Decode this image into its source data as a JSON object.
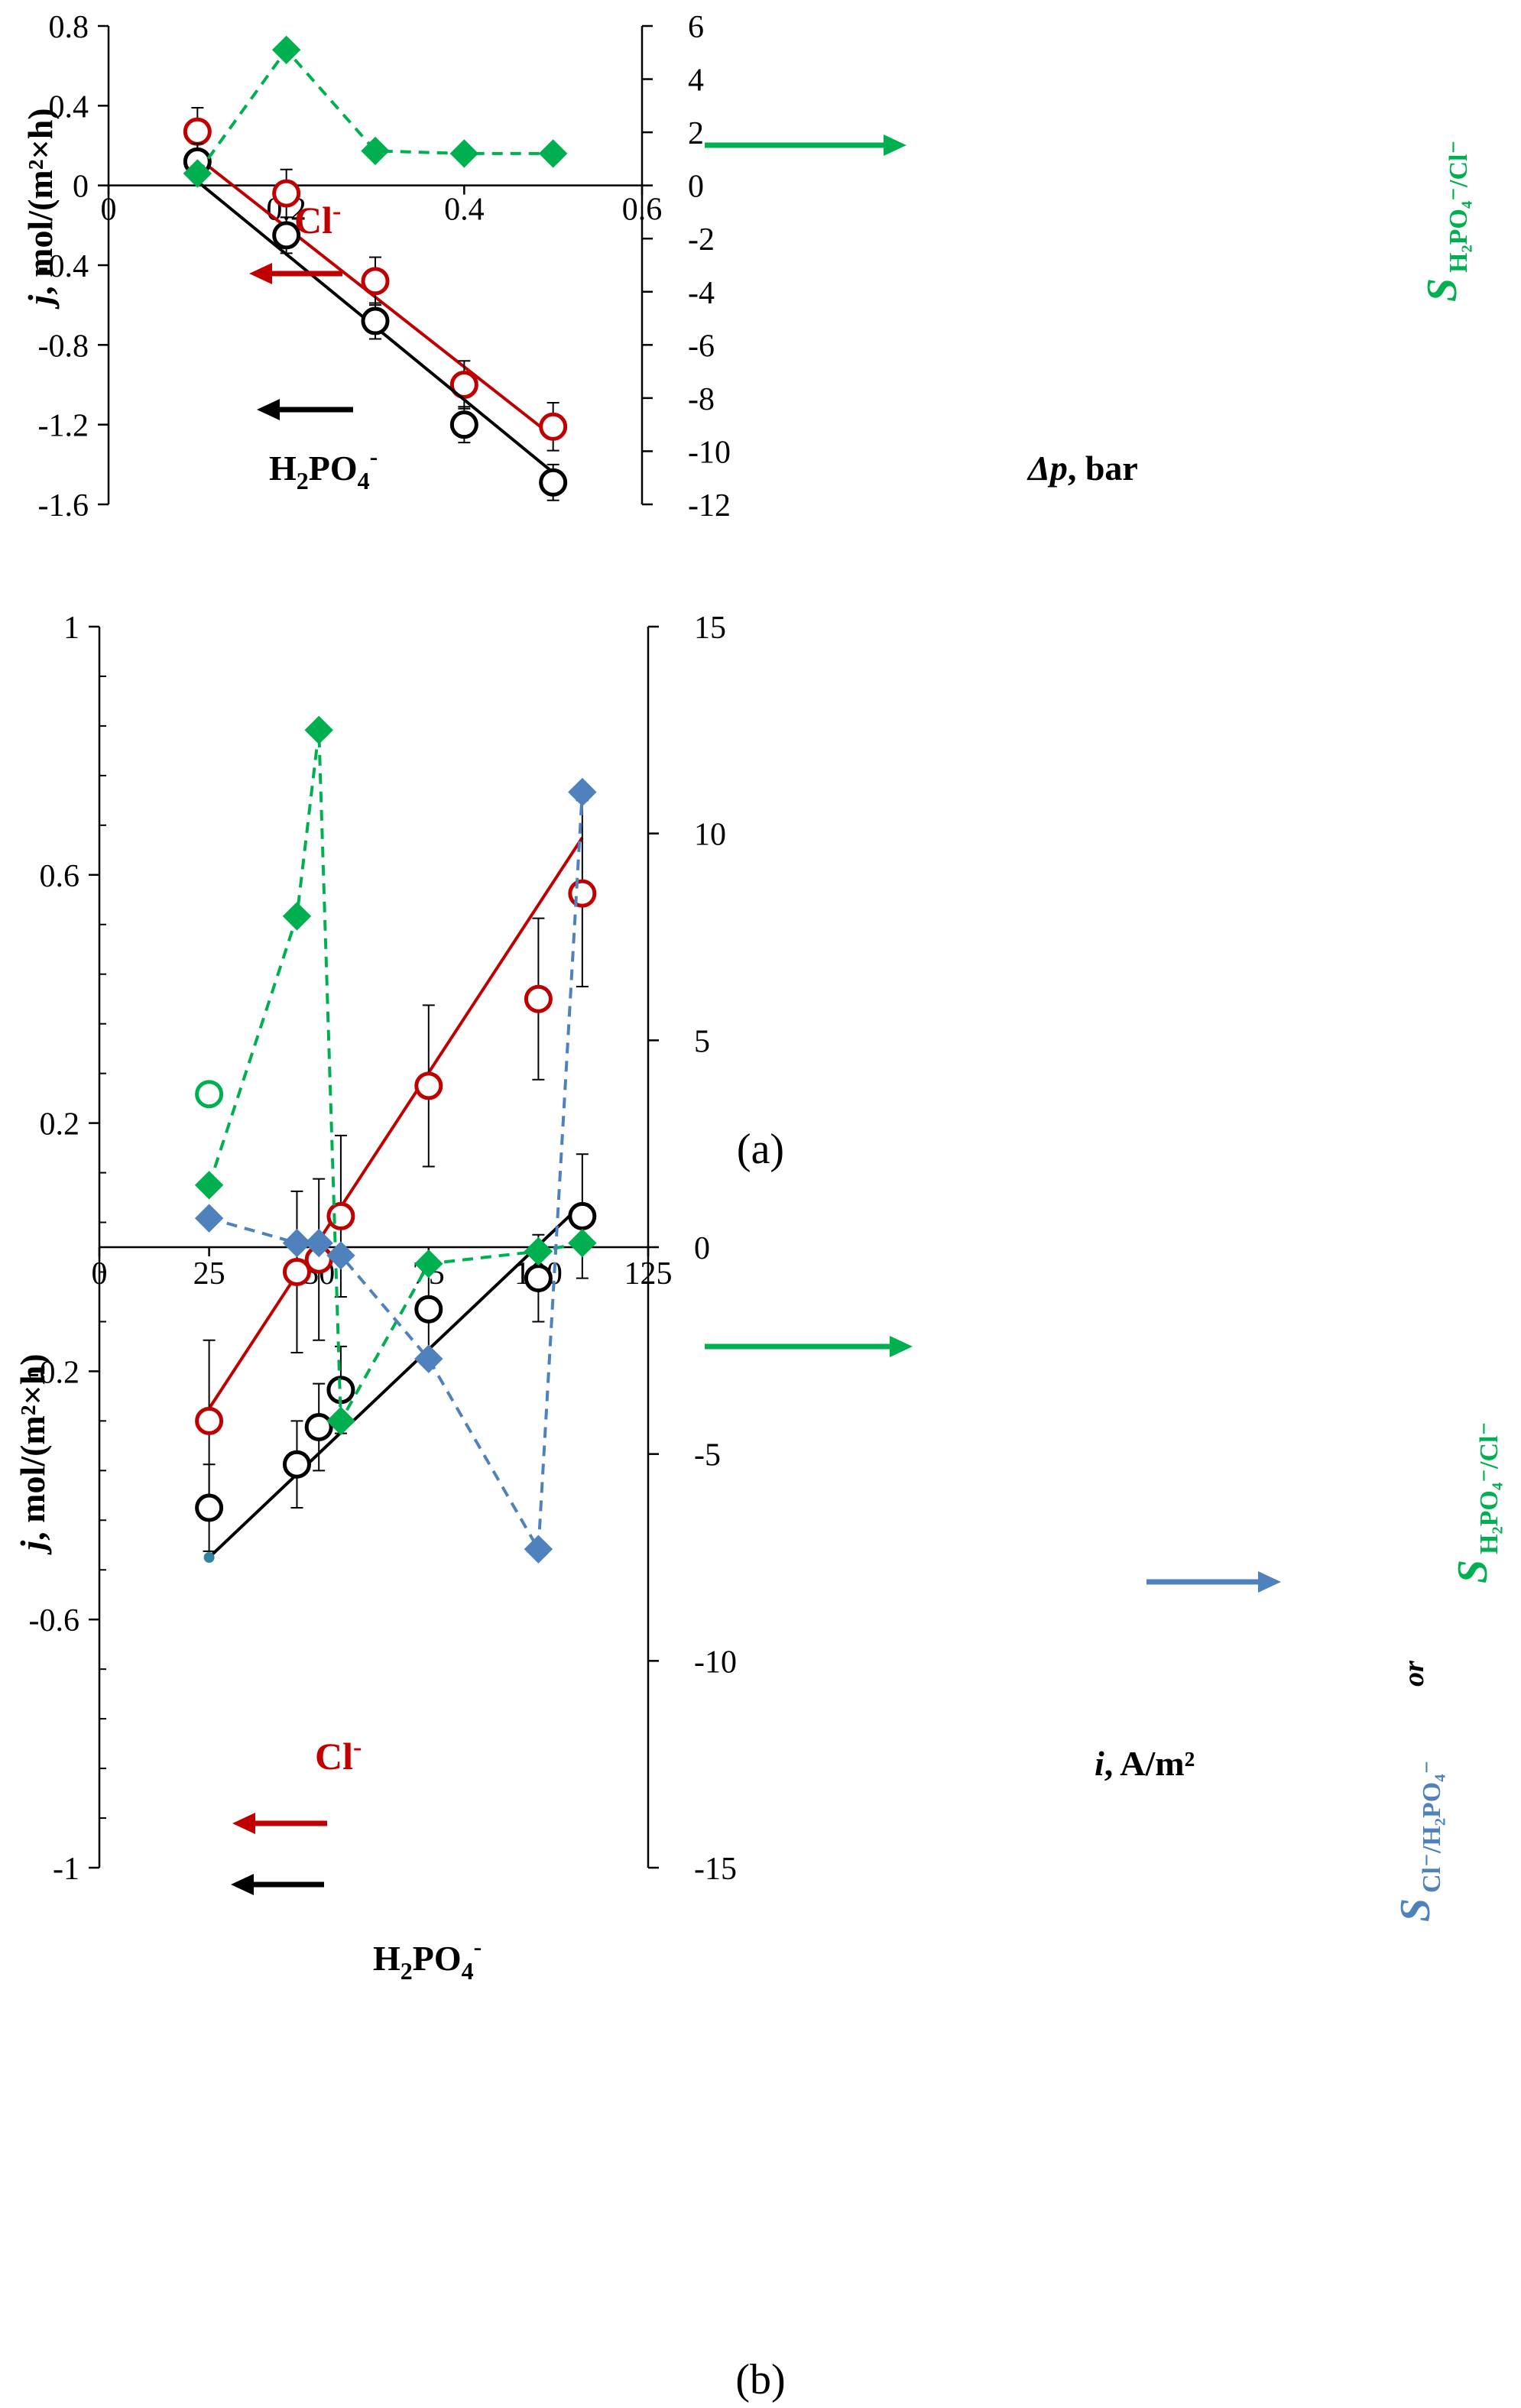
{
  "colors": {
    "cl": "#C00000",
    "h2po4": "#000000",
    "sel_green": "#00B050",
    "sel_blue": "#4F81BD",
    "axis": "#000000"
  },
  "chart_data": [
    {
      "panel_label": "(a)",
      "type": "scatter",
      "x": {
        "label": "Δp, bar",
        "lim": [
          0,
          0.6
        ],
        "ticks": [
          0,
          0.2,
          0.4,
          0.6
        ],
        "tick_labels": [
          "0",
          "0.2",
          "0.4",
          "0.6"
        ]
      },
      "y_left": {
        "label": "j, mol/(m²×h)",
        "lim": [
          -1.6,
          0.8
        ],
        "ticks": [
          -1.6,
          -1.2,
          -0.8,
          -0.4,
          0,
          0.4,
          0.8
        ],
        "tick_labels": [
          "-1.6",
          "-1.2",
          "-0.8",
          "-0.4",
          "0",
          "0.4",
          "0.8"
        ]
      },
      "y_right": {
        "label": "S H2PO4-/Cl-",
        "lim": [
          -12,
          6
        ],
        "ticks": [
          -12,
          -10,
          -8,
          -6,
          -4,
          -2,
          0,
          2,
          4,
          6
        ],
        "tick_labels": [
          "-12",
          "-10",
          "-8",
          "-6",
          "-4",
          "-2",
          "0",
          "2",
          "4",
          "6"
        ]
      },
      "series": [
        {
          "name": "Cl-",
          "axis": "left",
          "color_key": "cl",
          "marker": "open-circle",
          "x": [
            0.1,
            0.2,
            0.3,
            0.4,
            0.5
          ],
          "y": [
            0.27,
            -0.04,
            -0.48,
            -1.0,
            -1.21
          ],
          "err": [
            0.12,
            0.12,
            0.12,
            0.12,
            0.12
          ],
          "fit": {
            "x": [
              0.1,
              0.5
            ],
            "y": [
              0.14,
              -1.26
            ]
          }
        },
        {
          "name": "H2PO4-",
          "axis": "left",
          "color_key": "h2po4",
          "marker": "open-circle",
          "x": [
            0.1,
            0.2,
            0.3,
            0.4,
            0.5
          ],
          "y": [
            0.12,
            -0.25,
            -0.68,
            -1.2,
            -1.49
          ],
          "err": [
            0.09,
            0.09,
            0.09,
            0.09,
            0.09
          ],
          "fit": {
            "x": [
              0.1,
              0.5
            ],
            "y": [
              0.02,
              -1.44
            ]
          }
        },
        {
          "name": "S H2PO4-/Cl-",
          "axis": "right",
          "color_key": "sel_green",
          "marker": "filled-diamond",
          "dashed": true,
          "x": [
            0.1,
            0.2,
            0.3,
            0.4,
            0.5
          ],
          "y": [
            0.45,
            5.1,
            1.3,
            1.2,
            1.2
          ]
        }
      ],
      "annotations": {
        "cl_label": "Cl",
        "cl_sup": "-",
        "h2po4_label": "H",
        "h2po4_sub1": "2",
        "h2po4_mid": "PO",
        "h2po4_sub2": "4",
        "h2po4_sup": "-",
        "x_label_italic": "Δp",
        "x_label_rest": ", bar",
        "y_label_italic": "j",
        "y_label_rest": ", mol/(m²×h)",
        "right_label_S": "S",
        "right_label_sub": "H₂PO₄⁻/Cl⁻"
      }
    },
    {
      "panel_label": "(b)",
      "type": "scatter",
      "x": {
        "label": "i, A/m²",
        "lim": [
          0,
          125
        ],
        "ticks": [
          0,
          25,
          50,
          75,
          100,
          125
        ],
        "tick_labels": [
          "0",
          "25",
          "50",
          "75",
          "100",
          "125"
        ]
      },
      "y_left": {
        "label": "j, mol/(m²×h)",
        "lim": [
          -1,
          1
        ],
        "ticks": [
          -1,
          -0.6,
          -0.2,
          0.2,
          0.6,
          1
        ],
        "tick_labels": [
          "-1",
          "-0.6",
          "-0.2",
          "0.2",
          "0.6",
          "1"
        ]
      },
      "y_right": {
        "label": "S Cl-/H2PO4- or S H2PO4-/Cl-",
        "lim": [
          -15,
          15
        ],
        "ticks": [
          -15,
          -10,
          -5,
          0,
          5,
          10,
          15
        ],
        "tick_labels": [
          "-15",
          "-10",
          "-5",
          "0",
          "5",
          "10",
          "15"
        ]
      },
      "series": [
        {
          "name": "Cl-",
          "axis": "left",
          "color_key": "cl",
          "marker": "open-circle",
          "x": [
            25,
            45,
            50,
            55,
            75,
            100,
            110
          ],
          "y": [
            -0.28,
            -0.04,
            -0.02,
            0.05,
            0.26,
            0.4,
            0.57
          ],
          "err": [
            0.13,
            0.13,
            0.13,
            0.13,
            0.13,
            0.13,
            0.15
          ],
          "fit": {
            "x": [
              25,
              110
            ],
            "y": [
              -0.26,
              0.66
            ]
          }
        },
        {
          "name": "H2PO4-",
          "axis": "left",
          "color_key": "h2po4",
          "marker": "open-circle",
          "x": [
            25,
            45,
            50,
            55,
            75,
            100,
            110
          ],
          "y": [
            -0.42,
            -0.35,
            -0.29,
            -0.23,
            -0.1,
            -0.05,
            0.05
          ],
          "err": [
            0.07,
            0.07,
            0.07,
            0.07,
            0.07,
            0.07,
            0.1
          ],
          "fit": {
            "x": [
              25,
              110
            ],
            "y": [
              -0.5,
              0.07
            ]
          }
        },
        {
          "name": "S H2PO4-/Cl-",
          "axis": "right",
          "color_key": "sel_green",
          "marker": "filled-diamond",
          "dashed": true,
          "x": [
            25,
            45,
            50,
            55,
            75,
            100,
            110
          ],
          "y": [
            1.5,
            8.0,
            12.5,
            -4.2,
            -0.4,
            -0.1,
            0.1
          ]
        },
        {
          "name": "S H2PO4-/Cl- (open)",
          "axis": "right",
          "color_key": "sel_green",
          "marker": "open-circle-green",
          "x": [
            25
          ],
          "y": [
            3.7
          ]
        },
        {
          "name": "S Cl-/H2PO4-",
          "axis": "right",
          "color_key": "sel_blue",
          "marker": "filled-diamond",
          "dashed": true,
          "x": [
            25,
            45,
            50,
            55,
            75,
            100,
            110
          ],
          "y": [
            0.7,
            0.1,
            0.1,
            -0.2,
            -2.7,
            -7.3,
            11.0
          ]
        }
      ],
      "annotations": {
        "cl_label": "Cl",
        "cl_sup": "-",
        "h2po4_label": "H",
        "h2po4_sub1": "2",
        "h2po4_mid": "PO",
        "h2po4_sub2": "4",
        "h2po4_sup": "-",
        "x_label_italic": "i",
        "x_label_rest": ", A/m²",
        "y_label_italic": "j",
        "y_label_rest": ", mol/(m²×h)",
        "right_label_S1": "S",
        "right_label_sub1": "Cl⁻/H₂PO₄⁻",
        "right_label_or": "or",
        "right_label_S2": "S",
        "right_label_sub2": "H₂PO₄⁻/Cl⁻"
      }
    }
  ]
}
